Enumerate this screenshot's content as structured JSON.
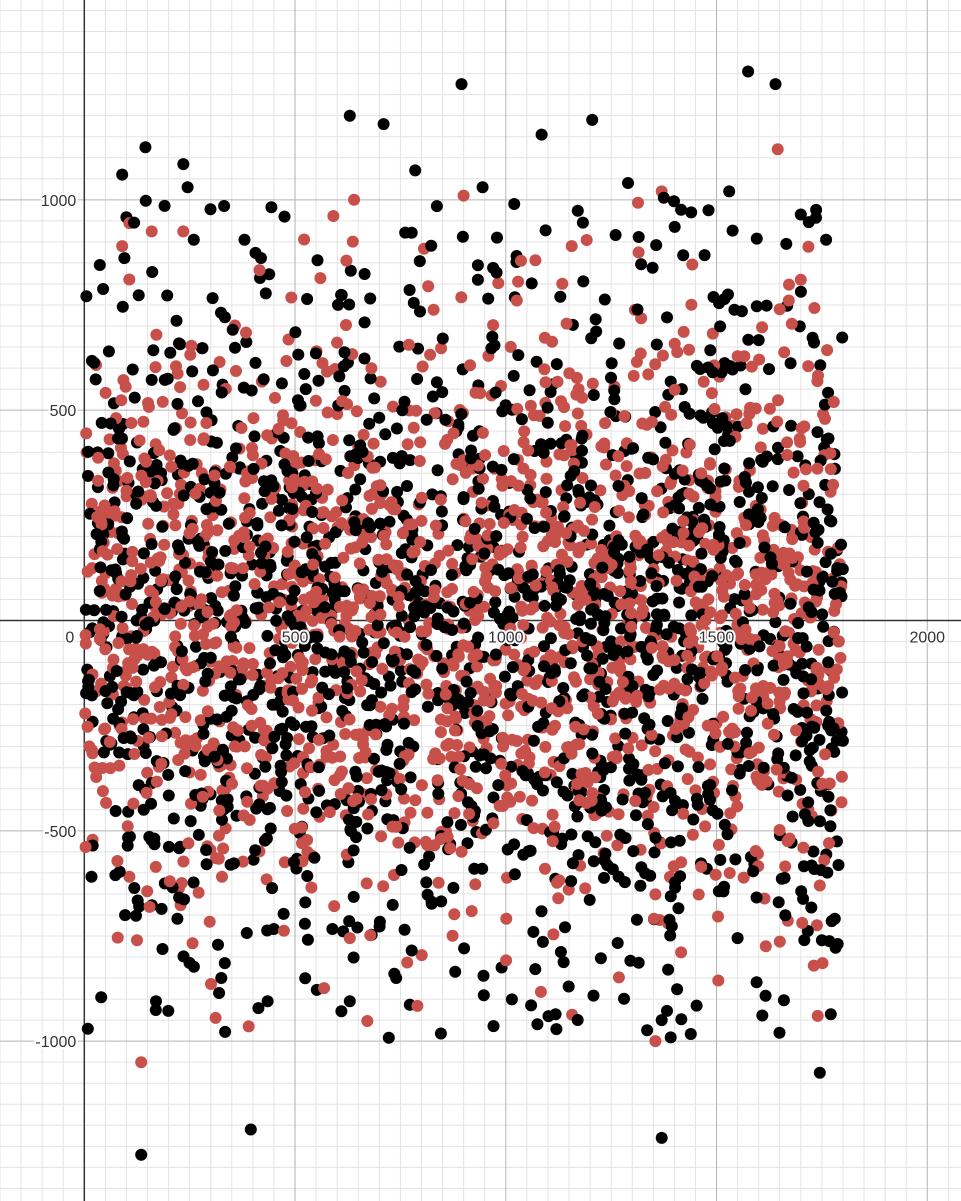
{
  "chart_data": {
    "type": "scatter",
    "title": "",
    "xlabel": "",
    "ylabel": "",
    "xlim": [
      -200,
      2080
    ],
    "ylim": [
      -1380,
      1475
    ],
    "grid": true,
    "minor_grid_step": 50,
    "major_grid_step": 500,
    "x_ticks": [
      {
        "value": 0,
        "label": "0"
      },
      {
        "value": 500,
        "label": "500"
      },
      {
        "value": 1000,
        "label": "1000"
      },
      {
        "value": 1500,
        "label": "1500"
      },
      {
        "value": 2000,
        "label": "2000"
      }
    ],
    "y_ticks": [
      {
        "value": 1000,
        "label": "1000"
      },
      {
        "value": 500,
        "label": "500"
      },
      {
        "value": -500,
        "label": "-500"
      },
      {
        "value": -1000,
        "label": "-1000"
      }
    ],
    "series": [
      {
        "color": "#000000",
        "n_points": 1800,
        "x_range": [
          0,
          1800
        ],
        "y_std": 420,
        "highlighted_outliers": [
          {
            "x": 90,
            "y": 1060
          },
          {
            "x": 145,
            "y": 1125
          },
          {
            "x": 235,
            "y": 1085
          },
          {
            "x": 245,
            "y": 1030
          },
          {
            "x": 380,
            "y": 905
          },
          {
            "x": 475,
            "y": 960
          },
          {
            "x": 630,
            "y": 1200
          },
          {
            "x": 710,
            "y": 1180
          },
          {
            "x": 785,
            "y": 1070
          },
          {
            "x": 895,
            "y": 1275
          },
          {
            "x": 945,
            "y": 1030
          },
          {
            "x": 1020,
            "y": 990
          },
          {
            "x": 1085,
            "y": 1155
          },
          {
            "x": 1205,
            "y": 1190
          },
          {
            "x": 1290,
            "y": 1040
          },
          {
            "x": 1375,
            "y": 1005
          },
          {
            "x": 1440,
            "y": 970
          },
          {
            "x": 1530,
            "y": 1020
          },
          {
            "x": 1575,
            "y": 1305
          },
          {
            "x": 1640,
            "y": 1275
          },
          {
            "x": 1700,
            "y": 965
          },
          {
            "x": 1760,
            "y": 905
          },
          {
            "x": 20,
            "y": -535
          },
          {
            "x": 130,
            "y": -680
          },
          {
            "x": 170,
            "y": -905
          },
          {
            "x": 135,
            "y": -1270
          },
          {
            "x": 325,
            "y": -850
          },
          {
            "x": 395,
            "y": -1210
          },
          {
            "x": 435,
            "y": -905
          },
          {
            "x": 630,
            "y": -905
          },
          {
            "x": 740,
            "y": -850
          },
          {
            "x": 880,
            "y": -835
          },
          {
            "x": 990,
            "y": -825
          },
          {
            "x": 1060,
            "y": -915
          },
          {
            "x": 1075,
            "y": -960
          },
          {
            "x": 1370,
            "y": -950
          },
          {
            "x": 1370,
            "y": -1230
          },
          {
            "x": 1385,
            "y": -830
          },
          {
            "x": 1595,
            "y": -860
          },
          {
            "x": 1745,
            "y": -1075
          },
          {
            "x": 1750,
            "y": -760
          }
        ]
      },
      {
        "color": "#c8504b",
        "n_points": 1800,
        "x_range": [
          0,
          1800
        ],
        "y_std": 330,
        "highlighted_outliers": [
          {
            "x": 90,
            "y": 890
          },
          {
            "x": 160,
            "y": 925
          },
          {
            "x": 235,
            "y": 925
          },
          {
            "x": 640,
            "y": 1000
          },
          {
            "x": 900,
            "y": 1010
          },
          {
            "x": 1315,
            "y": 875
          },
          {
            "x": 1370,
            "y": 1020
          },
          {
            "x": 1645,
            "y": 1120
          },
          {
            "x": 1700,
            "y": 810
          },
          {
            "x": 125,
            "y": -760
          },
          {
            "x": 135,
            "y": -1050
          },
          {
            "x": 390,
            "y": -965
          },
          {
            "x": 630,
            "y": -755
          },
          {
            "x": 1355,
            "y": -1000
          },
          {
            "x": 1385,
            "y": -720
          },
          {
            "x": 1740,
            "y": -940
          },
          {
            "x": 1745,
            "y": -630
          }
        ]
      }
    ]
  }
}
